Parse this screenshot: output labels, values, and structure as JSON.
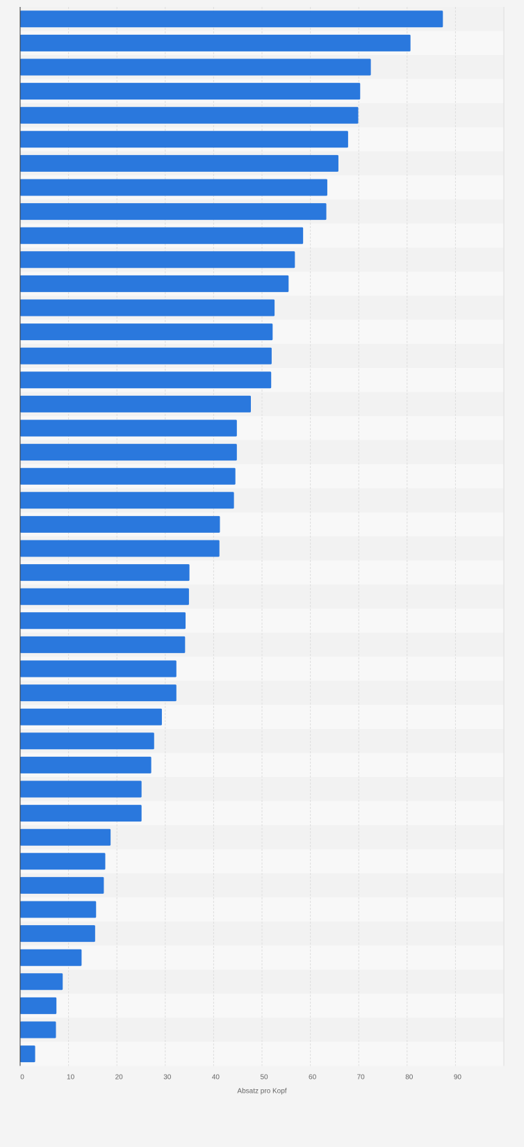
{
  "chart_data": {
    "type": "bar",
    "orientation": "horizontal",
    "title": "",
    "xlabel": "Absatz pro Kopf",
    "ylabel": "",
    "xlim": [
      0,
      100
    ],
    "xticks": [
      0,
      10,
      20,
      30,
      40,
      50,
      60,
      70,
      80,
      90
    ],
    "grid": true,
    "legend": "none",
    "bar_color": "#2a78dd",
    "values": [
      87.4,
      80.7,
      72.5,
      70.3,
      69.9,
      67.8,
      65.8,
      63.5,
      63.3,
      58.5,
      56.8,
      55.5,
      52.6,
      52.2,
      52.0,
      51.9,
      47.7,
      44.8,
      44.8,
      44.5,
      44.2,
      41.3,
      41.2,
      35.0,
      34.9,
      34.2,
      34.1,
      32.3,
      32.3,
      29.3,
      27.7,
      27.1,
      25.1,
      25.1,
      18.7,
      17.6,
      17.3,
      15.7,
      15.5,
      12.7,
      8.8,
      7.5,
      7.4,
      3.1
    ]
  },
  "colors": {
    "background": "#f4f4f4",
    "stripe_light": "#f8f8f8",
    "stripe_dark": "#f2f2f2",
    "gridline": "#dddddd",
    "axis": "#333333",
    "text": "#666666"
  }
}
